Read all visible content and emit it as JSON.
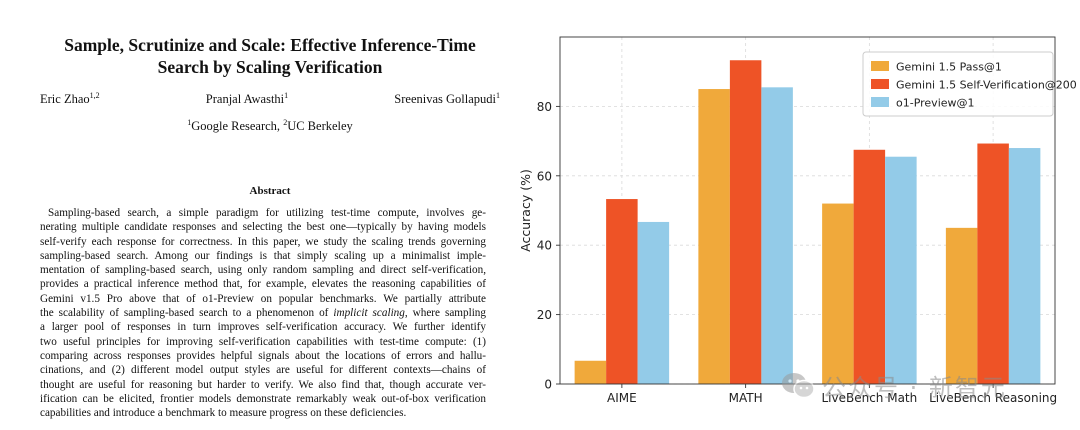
{
  "paper": {
    "title_line1": "Sample, Scrutinize and Scale: Effective Inference-Time",
    "title_line2": "Search by Scaling Verification",
    "authors": [
      {
        "name": "Eric Zhao",
        "sup": "1,2"
      },
      {
        "name": "Pranjal Awasthi",
        "sup": "1"
      },
      {
        "name": "Sreenivas Gollapudi",
        "sup": "1"
      }
    ],
    "affiliations": [
      {
        "sup": "1",
        "name": "Google Research, "
      },
      {
        "sup": "2",
        "name": "UC Berkeley"
      }
    ],
    "abstract_heading": "Abstract",
    "abstract_lines": [
      "Sampling-based search, a simple paradigm for utilizing test-time compute, involves ge-",
      "nerating multiple candidate responses and selecting the best one—typically by having models",
      "self-verify each response for correctness. In this paper, we study the scaling trends governing",
      "sampling-based search.  Among our findings is that simply scaling up a minimalist imple-",
      "mentation of sampling-based search, using only random sampling and direct self-verification,",
      "provides a practical inference method that, for example, elevates the reasoning capabilities of",
      "Gemini v1.5 Pro above that of o1-Preview on popular benchmarks.  We partially attribute",
      "the scalability of sampling-based search to a phenomenon of implicit scaling, where sampling",
      "a larger pool of responses in turn improves self-verification accuracy.  We further identify",
      "two useful principles for improving self-verification capabilities with test-time compute: (1)",
      "comparing across responses provides helpful signals about the locations of errors and hallu-",
      "cinations, and (2) different model output styles are useful for different contexts—chains of",
      "thought are useful for reasoning but harder to verify.  We also find that, though accurate ver-",
      "ification can be elicited, frontier models demonstrate remarkably weak out-of-box verification",
      "capabilities and introduce a benchmark to measure progress on these deficiencies."
    ]
  },
  "chart_data": {
    "type": "bar",
    "categories": [
      "AIME",
      "MATH",
      "LiveBench Math",
      "LiveBench Reasoning"
    ],
    "series": [
      {
        "name": "Gemini 1.5 Pass@1",
        "color": "#f0a93b",
        "values": [
          6.7,
          85.0,
          52.0,
          45.0
        ]
      },
      {
        "name": "Gemini 1.5 Self-Verification@200",
        "color": "#ee5326",
        "values": [
          53.3,
          93.3,
          67.5,
          69.3
        ]
      },
      {
        "name": "o1-Preview@1",
        "color": "#93cbe8",
        "values": [
          46.7,
          85.5,
          65.5,
          68.0
        ]
      }
    ],
    "ylabel": "Accuracy (%)",
    "yticks": [
      0,
      20,
      40,
      60,
      80
    ],
    "ylim": [
      0,
      100
    ],
    "grid": true,
    "legend_position": "top-right"
  },
  "watermark": {
    "text": "公众号 · 新智元",
    "icon": "wechat-icon"
  }
}
